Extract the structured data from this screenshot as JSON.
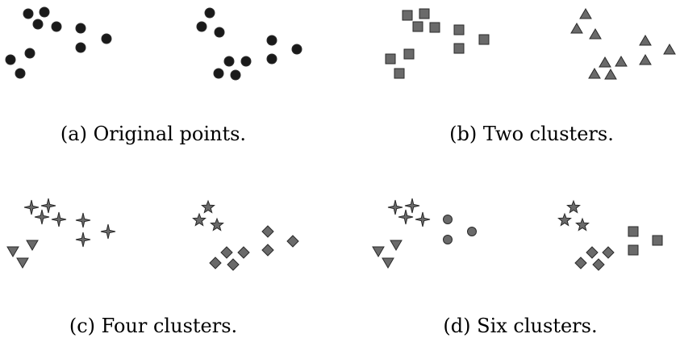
{
  "panels": [
    {
      "caption": "(a) Original points.",
      "groups": [
        {
          "shape": "circle",
          "fill": "#1a1a1a",
          "points": [
            [
              35,
              17
            ],
            [
              55,
              15
            ],
            [
              47,
              30
            ],
            [
              70,
              33
            ],
            [
              100,
              35
            ],
            [
              132,
              48
            ],
            [
              100,
              59
            ],
            [
              37,
              66
            ],
            [
              13,
              74
            ],
            [
              25,
              91
            ],
            [
              260,
              16
            ],
            [
              250,
              33
            ],
            [
              272,
              40
            ],
            [
              337,
              50
            ],
            [
              368,
              61
            ],
            [
              337,
              73
            ],
            [
              284,
              76
            ],
            [
              305,
              76
            ],
            [
              271,
              91
            ],
            [
              292,
              93
            ]
          ]
        }
      ]
    },
    {
      "caption": "(b) Two clusters.",
      "groups": [
        {
          "shape": "square",
          "fill": "#6a6a6a",
          "points": [
            [
              505,
              19
            ],
            [
              526,
              17
            ],
            [
              518,
              33
            ],
            [
              539,
              34
            ],
            [
              569,
              37
            ],
            [
              600,
              49
            ],
            [
              569,
              60
            ],
            [
              507,
              67
            ],
            [
              484,
              73
            ],
            [
              495,
              91
            ]
          ]
        },
        {
          "shape": "triangle-up",
          "fill": "#6a6a6a",
          "points": [
            [
              726,
              18
            ],
            [
              715,
              36
            ],
            [
              738,
              43
            ],
            [
              800,
              51
            ],
            [
              830,
              62
            ],
            [
              800,
              75
            ],
            [
              750,
              78
            ],
            [
              770,
              77
            ],
            [
              737,
              92
            ],
            [
              757,
              93
            ]
          ]
        }
      ]
    },
    {
      "caption": "(c) Four clusters.",
      "groups": [
        {
          "shape": "star4",
          "fill": "#6a6a6a",
          "points": [
            [
              39,
              257
            ],
            [
              60,
              255
            ],
            [
              52,
              269
            ],
            [
              73,
              272
            ],
            [
              103,
              273
            ],
            [
              134,
              287
            ],
            [
              103,
              297
            ]
          ]
        },
        {
          "shape": "triangle-down",
          "fill": "#6a6a6a",
          "points": [
            [
              40,
              303
            ],
            [
              16,
              311
            ],
            [
              28,
              325
            ]
          ]
        },
        {
          "shape": "star5",
          "fill": "#6a6a6a",
          "points": [
            [
              258,
              257
            ],
            [
              247,
              273
            ],
            [
              269,
              279
            ]
          ]
        },
        {
          "shape": "diamond",
          "fill": "#6a6a6a",
          "points": [
            [
              332,
              287
            ],
            [
              363,
              299
            ],
            [
              332,
              310
            ],
            [
              281,
              313
            ],
            [
              302,
              313
            ],
            [
              267,
              326
            ],
            [
              289,
              328
            ]
          ]
        }
      ]
    },
    {
      "caption": "(d) Six clusters.",
      "groups": [
        {
          "shape": "star4",
          "fill": "#6a6a6a",
          "points": [
            [
              490,
              257
            ],
            [
              511,
              255
            ],
            [
              503,
              269
            ],
            [
              524,
              272
            ]
          ]
        },
        {
          "shape": "circle",
          "fill": "#6a6a6a",
          "points": [
            [
              555,
              272
            ],
            [
              585,
              287
            ],
            [
              555,
              297
            ]
          ]
        },
        {
          "shape": "triangle-down",
          "fill": "#6a6a6a",
          "points": [
            [
              491,
              303
            ],
            [
              469,
              311
            ],
            [
              481,
              325
            ]
          ]
        },
        {
          "shape": "star5",
          "fill": "#6a6a6a",
          "points": [
            [
              711,
              257
            ],
            [
              700,
              273
            ],
            [
              722,
              279
            ]
          ]
        },
        {
          "shape": "square",
          "fill": "#6a6a6a",
          "points": [
            [
              785,
              287
            ],
            [
              815,
              298
            ],
            [
              785,
              310
            ]
          ]
        },
        {
          "shape": "diamond",
          "fill": "#6a6a6a",
          "points": [
            [
              734,
              313
            ],
            [
              754,
              313
            ],
            [
              720,
              326
            ],
            [
              742,
              328
            ]
          ]
        }
      ]
    }
  ]
}
